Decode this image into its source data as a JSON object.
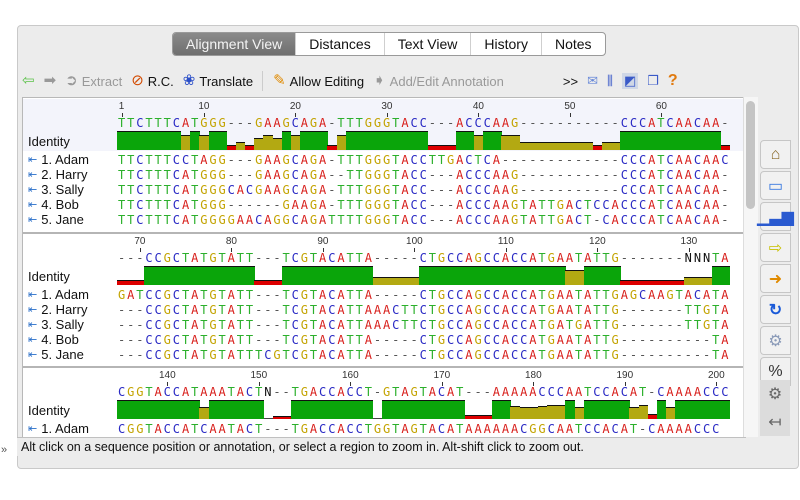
{
  "tabs": [
    {
      "label": "Alignment View",
      "active": true
    },
    {
      "label": "Distances"
    },
    {
      "label": "Text View"
    },
    {
      "label": "History"
    },
    {
      "label": "Notes"
    }
  ],
  "toolbar": {
    "back_icon": "back-arrow-icon",
    "forward_icon": "forward-arrow-icon",
    "extract": "Extract",
    "rc": "R.C.",
    "translate": "Translate",
    "allow_editing": "Allow Editing",
    "annotation": "Add/Edit Annotation",
    "more": ">>",
    "help": "?"
  },
  "identity_label": "Identity",
  "names": [
    "1. Adam",
    "2. Harry",
    "3. Sally",
    "4. Bob",
    "5. Jane"
  ],
  "colors": {
    "A": "#d8201c",
    "C": "#2a2ac4",
    "G": "#c3a300",
    "T": "#2cb02c",
    "-": "#555555",
    "N": "#111111",
    "identity_full": "#0aa50a",
    "identity_partial": "#b3a912",
    "identity_low": "#dd0000"
  },
  "blocks": [
    {
      "start": 1,
      "consensus": "TTCTTTCATGGG---GAAGCAGA-TTTGGGTACC---ACCCAAG-----------CCCATCAACAA-",
      "sequences": [
        "TTCTTTCCTAGG---GAAGCAGA-TTTGGGTACCTTGACTCA-------------CCCATCAACAAC",
        "TTCTTTCATGGG---GAAGCAGA--TTGGGTACC---ACCCAAG-----------CCCATCAACAA-",
        "TTCTTTCATGGGCACGAAGCAGA-TTTGGGTACC---ACCCAAG-----------CCCATCAACAA-",
        "TTCTTTCATGGG------GAAGA-TTTGGGTACC---ACCCAAGTATTGACTCCACCCATCAACAA-",
        "TTCTTTCATGGGGAACAGGCAGATTTTGGGTACC---ACCCAAGTATTGACT-CACCCATCAACAA-"
      ]
    },
    {
      "start": 68,
      "consensus": "---CCGCTATGTATT---TCGTACATTA-----CTGCCAGCCACCATGAATATTG-------NNNTA",
      "sequences": [
        "GATCCGCTATGTATT---TCGTACATTA-----CTGCCAGCCACCATGAATATTGAGCAAGTACATA",
        "---CCGCTATGTATT---TCGTACATTAAACTTCTGCCAGCCACCATGAATATTG-------TTGTA",
        "---CCGCTATGTATT---TCGTACATTAAACTTCTGCCAGCCACCATGATGATTG-------TTGTA",
        "---CCGCTATGTATT---TCGTACATTA-----CTGCCAGCCACCATGAATATTG----------TA",
        "---CCGCTATGTATTTCGTCGTACATTA-----CTGCCAGCCACCATGAATATTG----------TA"
      ]
    },
    {
      "start": 135,
      "consensus": "CGGTACCATAAATACTN--TGACCACCT-GTAGTACAT---AAAAACCCAATCCACAT-CAAAACCC",
      "identity": [
        100,
        100,
        100,
        100,
        100,
        100,
        100,
        100,
        100,
        60,
        100,
        100,
        100,
        100,
        100,
        100,
        0,
        10,
        10,
        100,
        100,
        100,
        100,
        100,
        100,
        100,
        100,
        100,
        0,
        100,
        100,
        100,
        100,
        100,
        100,
        100,
        100,
        100,
        15,
        15,
        15,
        100,
        100,
        65,
        60,
        60,
        65,
        70,
        70,
        100,
        60,
        100,
        100,
        100,
        100,
        100,
        60,
        75,
        20,
        100,
        60,
        100,
        100,
        100,
        100,
        100,
        100
      ],
      "sequences": [
        "CGGTACCATCAATACT---TGACCACCTGGTAGTACATAAAAAACGGCAATCCACAT-CAAAACCC"
      ]
    }
  ],
  "status": "Alt click on a sequence position or annotation, or select a region to zoom in. Alt-shift click to zoom out.",
  "side_icons": [
    "home-icon",
    "monitor-icon",
    "bar-chart-icon",
    "arrow-right-icon",
    "help-arrow-icon",
    "refresh-icon",
    "gear-icon",
    "percent-icon"
  ],
  "percent": "%"
}
